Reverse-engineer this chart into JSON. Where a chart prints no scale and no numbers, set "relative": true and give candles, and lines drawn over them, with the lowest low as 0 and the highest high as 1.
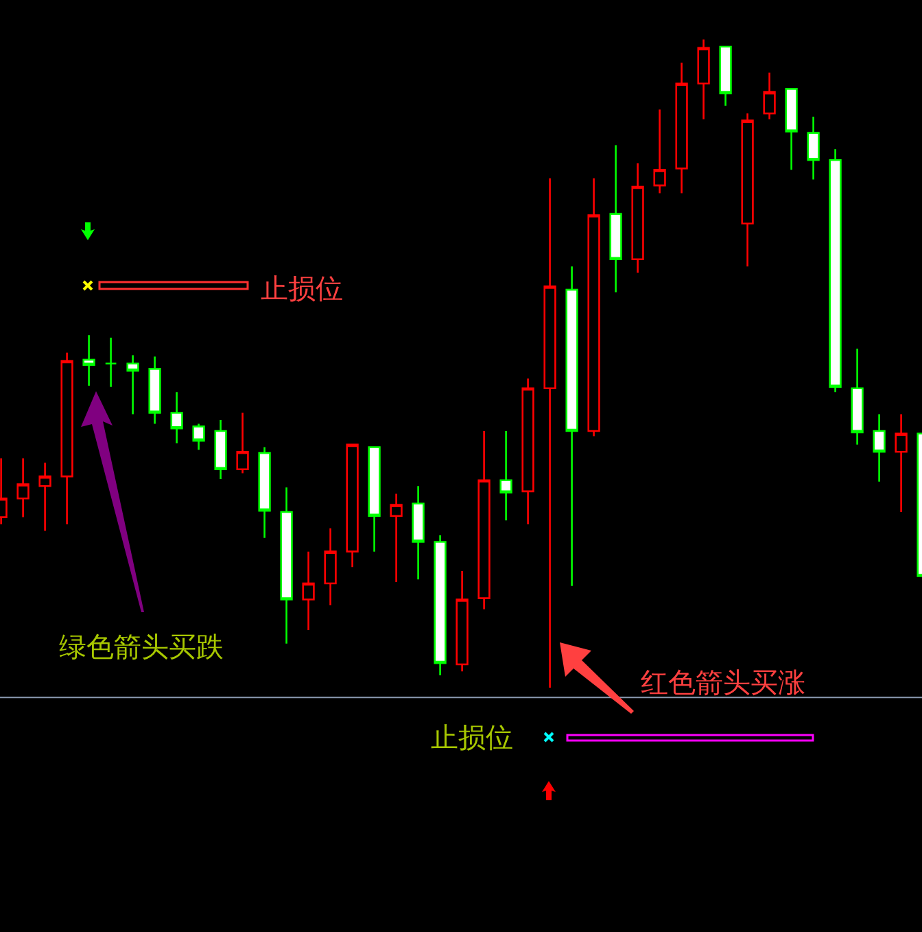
{
  "chart_data": {
    "type": "candlestick",
    "relative": true,
    "categories": [
      null,
      null,
      null,
      null,
      null,
      null,
      null,
      null,
      null,
      null,
      null,
      null,
      null,
      null,
      null,
      null,
      null,
      null,
      null,
      null,
      null,
      null,
      null,
      null,
      null,
      null,
      null,
      null,
      null,
      null,
      null,
      null,
      null,
      null,
      null,
      null,
      null,
      null,
      null,
      null,
      null,
      null,
      null
    ],
    "ohlc": [
      [
        0.263,
        0.354,
        0.252,
        0.292
      ],
      [
        0.292,
        0.354,
        0.263,
        0.314
      ],
      [
        0.311,
        0.347,
        0.242,
        0.326
      ],
      [
        0.326,
        0.517,
        0.252,
        0.504
      ],
      [
        0.506,
        0.544,
        0.466,
        0.498
      ],
      [
        0.5,
        0.54,
        0.464,
        0.5
      ],
      [
        0.5,
        0.513,
        0.422,
        0.489
      ],
      [
        0.492,
        0.511,
        0.407,
        0.424
      ],
      [
        0.424,
        0.456,
        0.377,
        0.4
      ],
      [
        0.403,
        0.407,
        0.367,
        0.381
      ],
      [
        0.396,
        0.413,
        0.322,
        0.337
      ],
      [
        0.337,
        0.424,
        0.331,
        0.364
      ],
      [
        0.362,
        0.371,
        0.231,
        0.273
      ],
      [
        0.271,
        0.309,
        0.068,
        0.136
      ],
      [
        0.136,
        0.21,
        0.089,
        0.161
      ],
      [
        0.161,
        0.246,
        0.127,
        0.21
      ],
      [
        0.21,
        0.375,
        0.186,
        0.375
      ],
      [
        0.371,
        0.371,
        0.21,
        0.265
      ],
      [
        0.265,
        0.299,
        0.163,
        0.282
      ],
      [
        0.284,
        0.311,
        0.167,
        0.225
      ],
      [
        0.225,
        0.235,
        0.019,
        0.038
      ],
      [
        0.036,
        0.18,
        0.025,
        0.136
      ],
      [
        0.138,
        0.396,
        0.121,
        0.32
      ],
      [
        0.32,
        0.396,
        0.258,
        0.301
      ],
      [
        0.303,
        0.477,
        0.252,
        0.462
      ],
      [
        0.462,
        0.786,
        0,
        0.619
      ],
      [
        0.614,
        0.65,
        0.157,
        0.396
      ],
      [
        0.396,
        0.786,
        0.388,
        0.729
      ],
      [
        0.731,
        0.837,
        0.61,
        0.661
      ],
      [
        0.661,
        0.809,
        0.64,
        0.773
      ],
      [
        0.775,
        0.892,
        0.763,
        0.799
      ],
      [
        0.801,
        0.964,
        0.763,
        0.932
      ],
      [
        0.932,
        1,
        0.877,
        0.987
      ],
      [
        0.989,
        0.989,
        0.898,
        0.917
      ],
      [
        0.716,
        0.886,
        0.65,
        0.875
      ],
      [
        0.886,
        0.949,
        0.877,
        0.919
      ],
      [
        0.924,
        0.924,
        0.799,
        0.858
      ],
      [
        0.856,
        0.881,
        0.784,
        0.814
      ],
      [
        0.814,
        0.831,
        0.456,
        0.464
      ],
      [
        0.462,
        0.523,
        0.375,
        0.394
      ],
      [
        0.396,
        0.422,
        0.318,
        0.364
      ],
      [
        0.364,
        0.422,
        0.271,
        0.392
      ],
      [
        0.392,
        0.392,
        0.172,
        0.172
      ]
    ],
    "colors": [
      "#ff0000",
      "#ff0000",
      "#ff0000",
      "#ff0000",
      "#00ff00",
      "#00ff00",
      "#00ff00",
      "#00ff00",
      "#00ff00",
      "#00ff00",
      "#00ff00",
      "#ff0000",
      "#00ff00",
      "#00ff00",
      "#ff0000",
      "#ff0000",
      "#ff0000",
      "#00ff00",
      "#ff0000",
      "#00ff00",
      "#00ff00",
      "#ff0000",
      "#ff0000",
      "#00ff00",
      "#ff0000",
      "#ff0000",
      "#00ff00",
      "#ff0000",
      "#00ff00",
      "#ff0000",
      "#ff0000",
      "#ff0000",
      "#ff0000",
      "#00ff00",
      "#ff0000",
      "#ff0000",
      "#00ff00",
      "#00ff00",
      "#00ff00",
      "#00ff00",
      "#00ff00",
      "#ff0000",
      "#00ff00"
    ],
    "ref_lines": [
      {
        "axis": "y",
        "value": -0.015,
        "color": "#8a9ab0"
      }
    ],
    "annotations": [
      "止损位",
      "绿色箭头买跌",
      "红色箭头买涨",
      "止损位"
    ]
  }
}
